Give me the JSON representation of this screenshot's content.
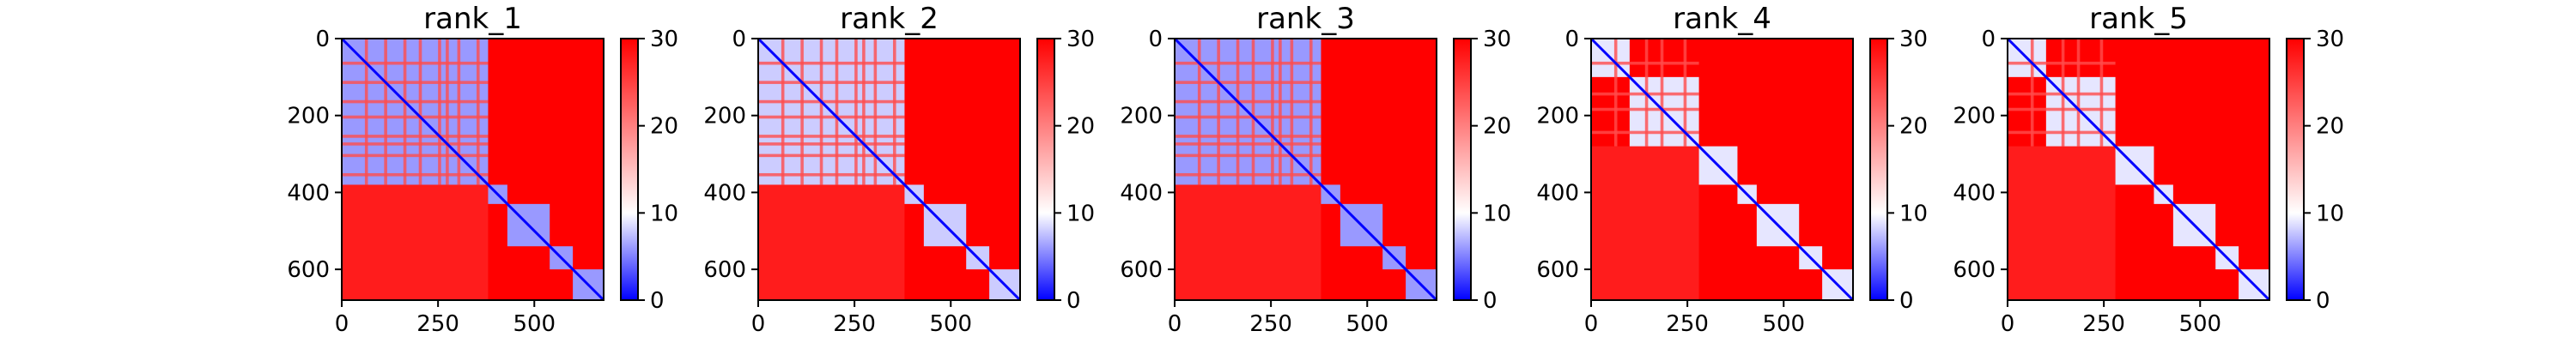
{
  "chart_data": [
    {
      "type": "heatmap",
      "title": "rank_1",
      "xlim": [
        0,
        680
      ],
      "ylim": [
        680,
        0
      ],
      "x_ticks": [
        0,
        250,
        500
      ],
      "y_ticks": [
        0,
        200,
        400,
        600
      ],
      "colorbar": {
        "min": 0,
        "max": 30,
        "ticks": [
          0,
          10,
          20,
          30
        ],
        "colors": [
          "#0000ff",
          "#ffffff",
          "#ff0000"
        ]
      },
      "blocks": [
        [
          0,
          380
        ],
        [
          380,
          430
        ],
        [
          430,
          540
        ],
        [
          540,
          600
        ],
        [
          600,
          680
        ]
      ],
      "stripes": [
        60,
        110,
        160,
        200,
        250,
        270,
        300,
        350
      ],
      "stripe_end": 380,
      "block_value": 6
    },
    {
      "type": "heatmap",
      "title": "rank_2",
      "xlim": [
        0,
        680
      ],
      "ylim": [
        680,
        0
      ],
      "x_ticks": [
        0,
        250,
        500
      ],
      "y_ticks": [
        0,
        200,
        400,
        600
      ],
      "colorbar": {
        "min": 0,
        "max": 30,
        "ticks": [
          0,
          10,
          20,
          30
        ],
        "colors": [
          "#0000ff",
          "#ffffff",
          "#ff0000"
        ]
      },
      "blocks": [
        [
          0,
          380
        ],
        [
          380,
          430
        ],
        [
          430,
          540
        ],
        [
          540,
          600
        ],
        [
          600,
          680
        ]
      ],
      "stripes": [
        60,
        110,
        160,
        200,
        250,
        270,
        300,
        350
      ],
      "stripe_end": 380,
      "block_value": 8
    },
    {
      "type": "heatmap",
      "title": "rank_3",
      "xlim": [
        0,
        680
      ],
      "ylim": [
        680,
        0
      ],
      "x_ticks": [
        0,
        250,
        500
      ],
      "y_ticks": [
        0,
        200,
        400,
        600
      ],
      "colorbar": {
        "min": 0,
        "max": 30,
        "ticks": [
          0,
          10,
          20,
          30
        ],
        "colors": [
          "#0000ff",
          "#ffffff",
          "#ff0000"
        ]
      },
      "blocks": [
        [
          0,
          380
        ],
        [
          380,
          430
        ],
        [
          430,
          540
        ],
        [
          540,
          600
        ],
        [
          600,
          680
        ]
      ],
      "stripes": [
        60,
        110,
        160,
        200,
        250,
        270,
        300,
        350
      ],
      "stripe_end": 380,
      "block_value": 6
    },
    {
      "type": "heatmap",
      "title": "rank_4",
      "xlim": [
        0,
        680
      ],
      "ylim": [
        680,
        0
      ],
      "x_ticks": [
        0,
        250,
        500
      ],
      "y_ticks": [
        0,
        200,
        400,
        600
      ],
      "colorbar": {
        "min": 0,
        "max": 30,
        "ticks": [
          0,
          10,
          20,
          30
        ],
        "colors": [
          "#0000ff",
          "#ffffff",
          "#ff0000"
        ]
      },
      "blocks": [
        [
          0,
          100
        ],
        [
          100,
          280
        ],
        [
          280,
          380
        ],
        [
          380,
          430
        ],
        [
          430,
          540
        ],
        [
          540,
          600
        ],
        [
          600,
          680
        ]
      ],
      "stripes": [
        60,
        140,
        180,
        240
      ],
      "stripe_end": 280,
      "block_value": 9
    },
    {
      "type": "heatmap",
      "title": "rank_5",
      "xlim": [
        0,
        680
      ],
      "ylim": [
        680,
        0
      ],
      "x_ticks": [
        0,
        250,
        500
      ],
      "y_ticks": [
        0,
        200,
        400,
        600
      ],
      "colorbar": {
        "min": 0,
        "max": 30,
        "ticks": [
          0,
          10,
          20,
          30
        ],
        "colors": [
          "#0000ff",
          "#ffffff",
          "#ff0000"
        ]
      },
      "blocks": [
        [
          0,
          100
        ],
        [
          100,
          280
        ],
        [
          280,
          380
        ],
        [
          380,
          430
        ],
        [
          430,
          540
        ],
        [
          540,
          600
        ],
        [
          600,
          680
        ]
      ],
      "stripes": [
        60,
        140,
        180,
        240
      ],
      "stripe_end": 280,
      "block_value": 9
    }
  ]
}
